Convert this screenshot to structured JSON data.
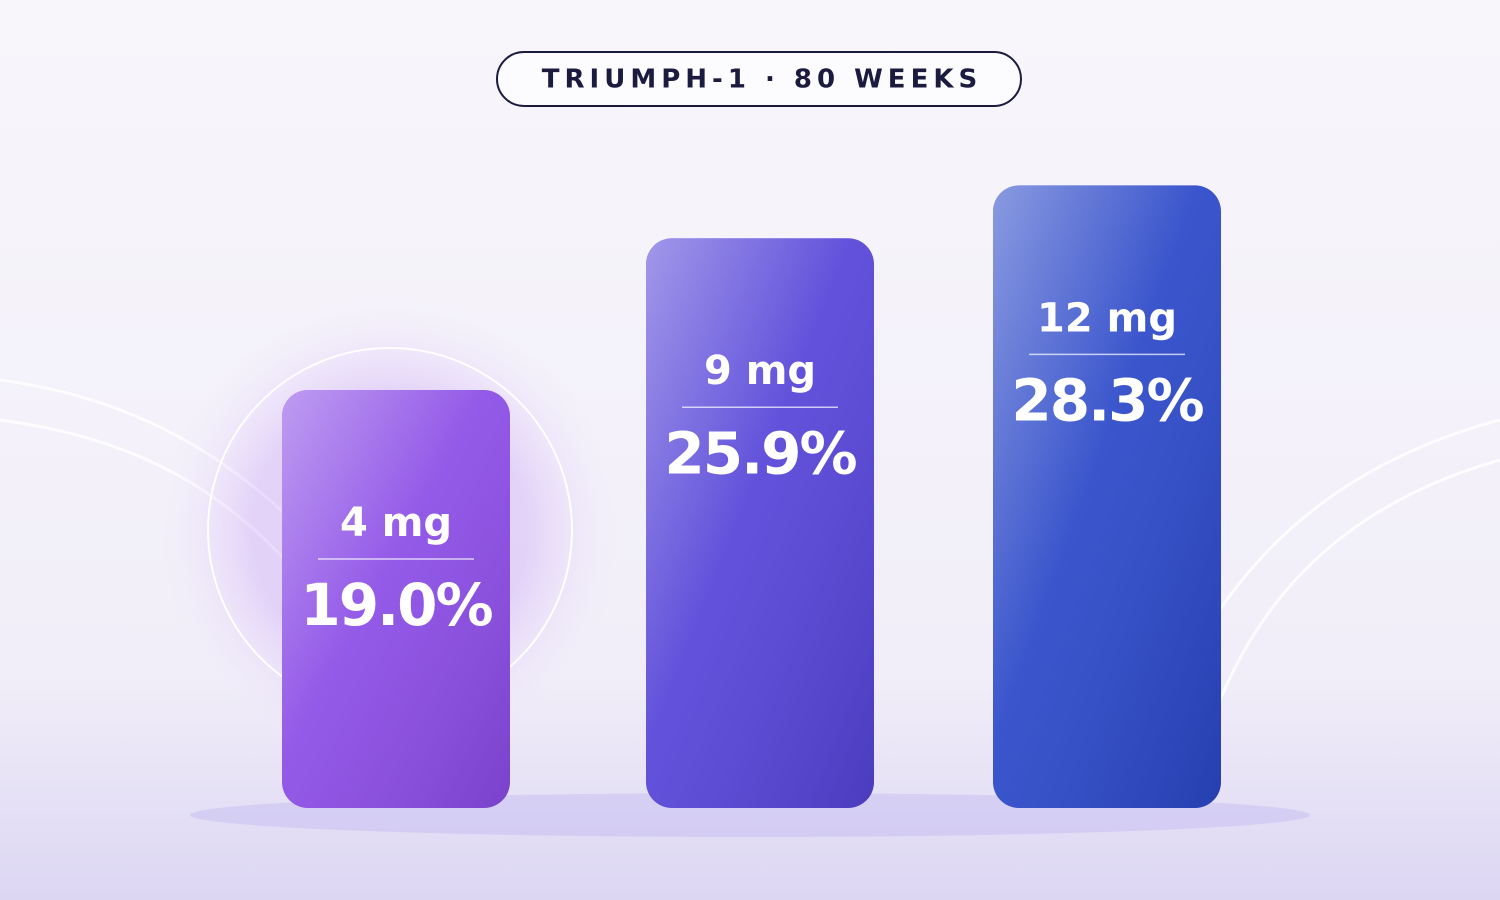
{
  "chart_data": {
    "type": "bar",
    "title": "TRIUMPH-1 · 80 WEEKS",
    "categories": [
      "4 mg",
      "9 mg",
      "12 mg"
    ],
    "values": [
      19.0,
      25.9,
      28.3
    ],
    "value_labels": [
      "19.0%",
      "25.9%",
      "28.3%"
    ],
    "colors": [
      "#8a4be6",
      "#5543d8",
      "#2a47c8"
    ]
  }
}
